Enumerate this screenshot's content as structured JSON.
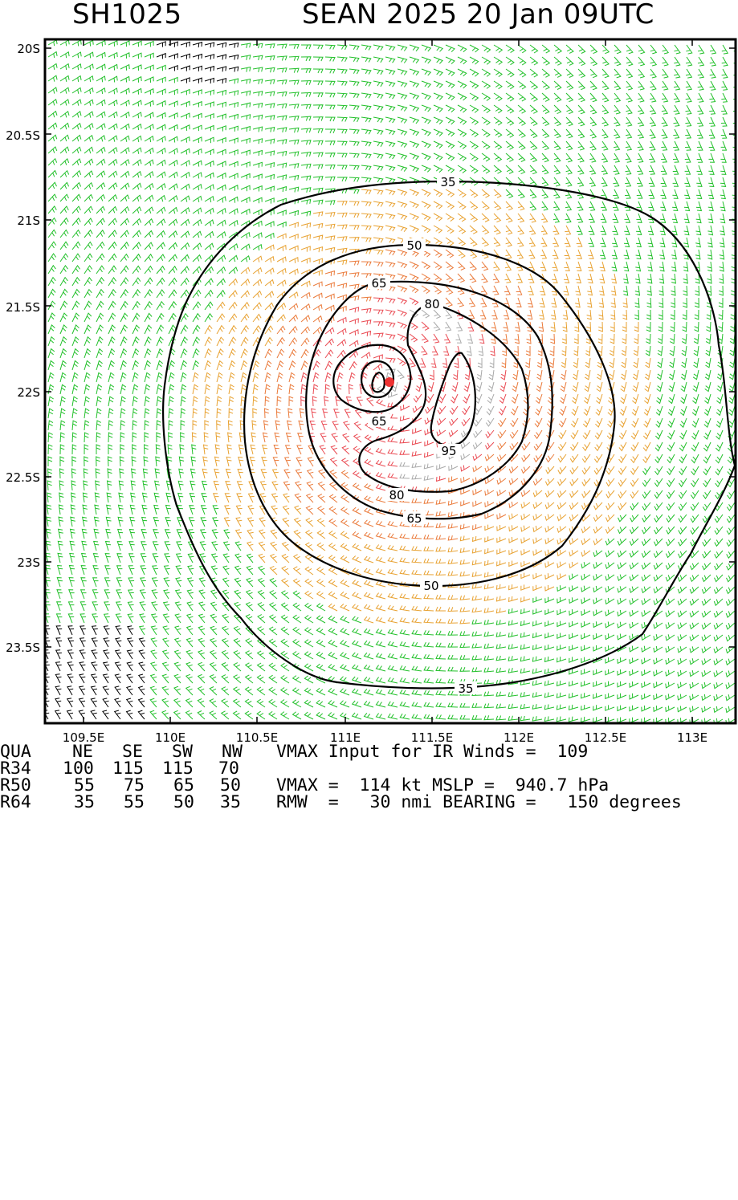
{
  "header": {
    "storm_id": "SH1025",
    "storm_title": "SEAN 2025 20 Jan 09UTC"
  },
  "map": {
    "lat_labels": [
      "20S",
      "20.5S",
      "21S",
      "21.5S",
      "22S",
      "22.5S",
      "23S",
      "23.5S"
    ],
    "lon_labels": [
      "109.5E",
      "110E",
      "110.5E",
      "111E",
      "111.5E",
      "112E",
      "112.5E",
      "113E"
    ],
    "contour_labels": [
      "35",
      "50",
      "65",
      "80",
      "95",
      "65",
      "80",
      "65",
      "50",
      "35"
    ],
    "wind_speed_colors": {
      "below_34kt": "#000000",
      "34_to_50kt": "#22c02a",
      "50_to_64kt": "#e8a232",
      "64_to_80kt": "#ea7a3a",
      "80_to_95kt": "#ea4a52",
      "above_95kt": "#a9a9a9"
    },
    "center_marker_color": "#ee3333"
  },
  "table": {
    "header": [
      "QUA",
      "NE",
      "SE",
      "SW",
      "NW"
    ],
    "rows": [
      {
        "label": "R34",
        "values": [
          "100",
          "115",
          "115",
          "70"
        ]
      },
      {
        "label": "R50",
        "values": [
          "55",
          "75",
          "65",
          "50"
        ]
      },
      {
        "label": "R64",
        "values": [
          "35",
          "55",
          "50",
          "35"
        ]
      }
    ],
    "info": [
      "VMAX Input for IR Winds =  109",
      "",
      "VMAX =  114 kt MSLP =  940.7 hPa",
      "RMW  =   30 nmi BEARING =   150 degrees"
    ]
  }
}
